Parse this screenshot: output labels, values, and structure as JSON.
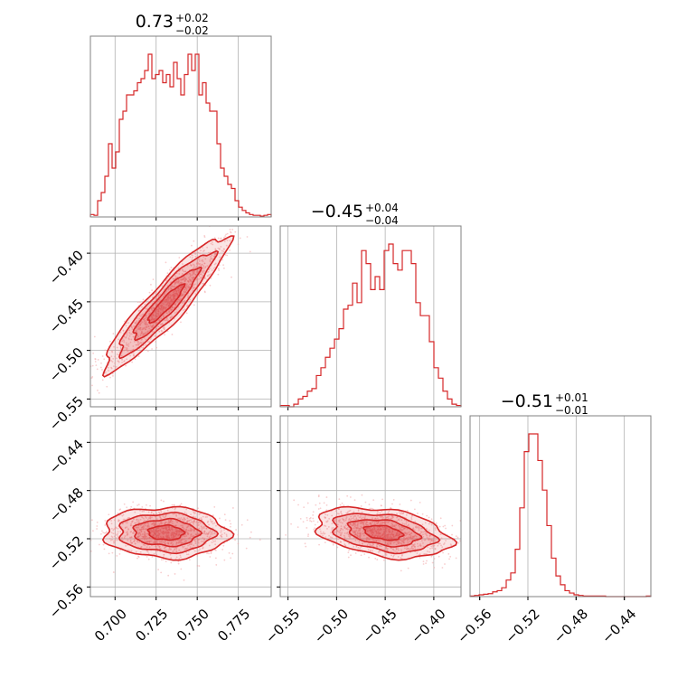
{
  "chart_data": {
    "type": "corner",
    "colors": {
      "series": "#d62728",
      "fill": "#f2a6a8",
      "grid": "#b0b0b0",
      "frame": "#808080"
    },
    "titles": [
      {
        "value": "0.73",
        "plus": "+0.02",
        "minus": "−0.02"
      },
      {
        "value": "−0.45",
        "plus": "+0.04",
        "minus": "−0.04"
      },
      {
        "value": "−0.51",
        "plus": "+0.01",
        "minus": "−0.01"
      }
    ],
    "params": [
      {
        "range": [
          0.685,
          0.795
        ],
        "ticks": [
          0.7,
          0.725,
          0.75,
          0.775
        ],
        "tick_labels": [
          "0.700",
          "0.725",
          "0.750",
          "0.775"
        ]
      },
      {
        "range": [
          -0.558,
          -0.372
        ],
        "ticks": [
          -0.55,
          -0.5,
          -0.45,
          -0.4
        ],
        "tick_labels": [
          "−0.55",
          "−0.50",
          "−0.45",
          "−0.40"
        ]
      },
      {
        "range": [
          -0.568,
          -0.418
        ],
        "ticks": [
          -0.56,
          -0.52,
          -0.48,
          -0.44
        ],
        "tick_labels": [
          "−0.56",
          "−0.52",
          "−0.48",
          "−0.44"
        ]
      }
    ],
    "histograms": [
      {
        "param": 0,
        "bins": 50,
        "counts": [
          3,
          2,
          20,
          30,
          50,
          90,
          60,
          80,
          120,
          130,
          150,
          150,
          155,
          165,
          170,
          180,
          200,
          170,
          175,
          180,
          165,
          175,
          160,
          190,
          170,
          150,
          175,
          200,
          180,
          200,
          150,
          165,
          140,
          130,
          130,
          90,
          60,
          50,
          40,
          35,
          20,
          12,
          8,
          5,
          3,
          2,
          2,
          1,
          2,
          3
        ]
      },
      {
        "param": 1,
        "bins": 40,
        "counts": [
          1,
          1,
          0,
          2,
          6,
          8,
          12,
          14,
          24,
          30,
          38,
          45,
          52,
          60,
          75,
          78,
          95,
          80,
          120,
          110,
          90,
          100,
          90,
          120,
          125,
          110,
          105,
          120,
          120,
          110,
          80,
          70,
          70,
          50,
          30,
          22,
          12,
          6,
          2,
          1
        ]
      },
      {
        "param": 2,
        "bins": 40,
        "counts": [
          1,
          2,
          3,
          4,
          5,
          8,
          10,
          15,
          28,
          40,
          80,
          150,
          245,
          275,
          275,
          230,
          180,
          120,
          65,
          35,
          20,
          10,
          6,
          3,
          2,
          1,
          1,
          1,
          1,
          1,
          0,
          0,
          0,
          0,
          0,
          0,
          0,
          0,
          0,
          1
        ]
      }
    ],
    "pairs": [
      {
        "x_param": 0,
        "y_param": 1,
        "correlation": 0.92
      },
      {
        "x_param": 0,
        "y_param": 2,
        "correlation": -0.05
      },
      {
        "x_param": 1,
        "y_param": 2,
        "correlation": -0.35
      }
    ],
    "samples_per_panel": 1200,
    "contour_levels": 4,
    "grid": true,
    "legend": "none"
  }
}
